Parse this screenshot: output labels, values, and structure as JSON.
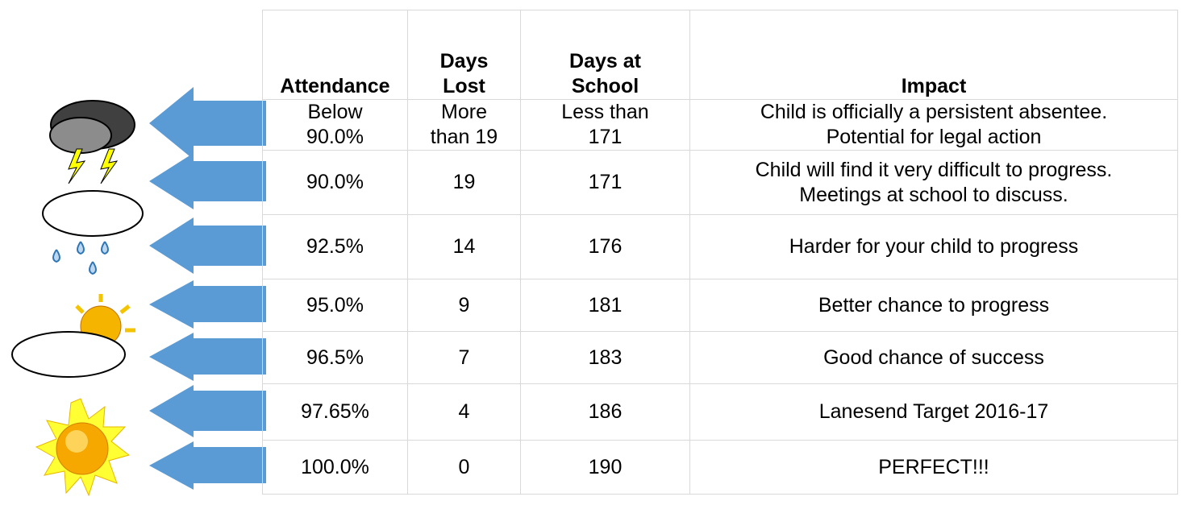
{
  "table": {
    "header": [
      [
        "Attendance"
      ],
      [
        "Days",
        "Lost"
      ],
      [
        "Days at",
        "School"
      ],
      [
        "Impact"
      ]
    ],
    "rows": [
      [
        [
          "Below",
          "90.0%"
        ],
        [
          "More",
          "than 19"
        ],
        [
          "Less than",
          "171"
        ],
        [
          "Child is officially a persistent absentee.",
          "Potential for legal action"
        ]
      ],
      [
        [
          "90.0%"
        ],
        [
          "19"
        ],
        [
          "171"
        ],
        [
          "Child will find it very difficult to progress.",
          "Meetings at school to discuss."
        ]
      ],
      [
        [
          "92.5%"
        ],
        [
          "14"
        ],
        [
          "176"
        ],
        [
          "Harder for your child to progress"
        ]
      ],
      [
        [
          "95.0%"
        ],
        [
          "9"
        ],
        [
          "181"
        ],
        [
          "Better chance to progress"
        ]
      ],
      [
        [
          "96.5%"
        ],
        [
          "7"
        ],
        [
          "183"
        ],
        [
          "Good chance of success"
        ]
      ],
      [
        [
          "97.65%"
        ],
        [
          "4"
        ],
        [
          "186"
        ],
        [
          "Lanesend Target 2016-17"
        ]
      ],
      [
        [
          "100.0%"
        ],
        [
          "0"
        ],
        [
          "190"
        ],
        [
          "PERFECT!!!"
        ]
      ]
    ]
  }
}
